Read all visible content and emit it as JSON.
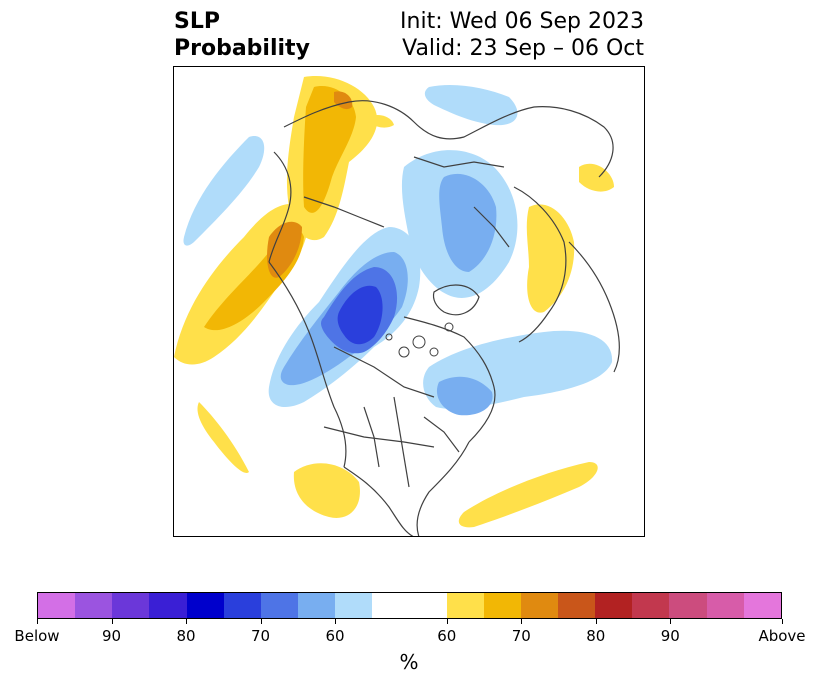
{
  "title": {
    "variable": "SLP",
    "product": "Probability",
    "init": "Init: Wed 06 Sep 2023",
    "valid": "Valid: 23 Sep – 06 Oct"
  },
  "map": {
    "projection": "north-polar-stereographic",
    "features": [
      "coastlines",
      "country-borders",
      "us-state-borders",
      "probability-shading"
    ]
  },
  "colorbar": {
    "unit": "%",
    "colors": [
      "#d36fe6",
      "#9b54e0",
      "#6b37d9",
      "#3a1fd5",
      "#0000cc",
      "#2a3fdc",
      "#4e74e6",
      "#78aef0",
      "#b0dcfa",
      "#ffffff",
      "#ffe04a",
      "#f2b705",
      "#e08a10",
      "#c9561a",
      "#b22222",
      "#c2384e",
      "#cc4c7e",
      "#d75ca9",
      "#e476dc"
    ],
    "widths": [
      2,
      2,
      2,
      2,
      2,
      2,
      2,
      2,
      2,
      4,
      2,
      2,
      2,
      2,
      2,
      2,
      2,
      2,
      2
    ],
    "ticks": [
      "Below",
      "90",
      "80",
      "70",
      "60",
      "60",
      "70",
      "80",
      "90",
      "Above"
    ]
  }
}
